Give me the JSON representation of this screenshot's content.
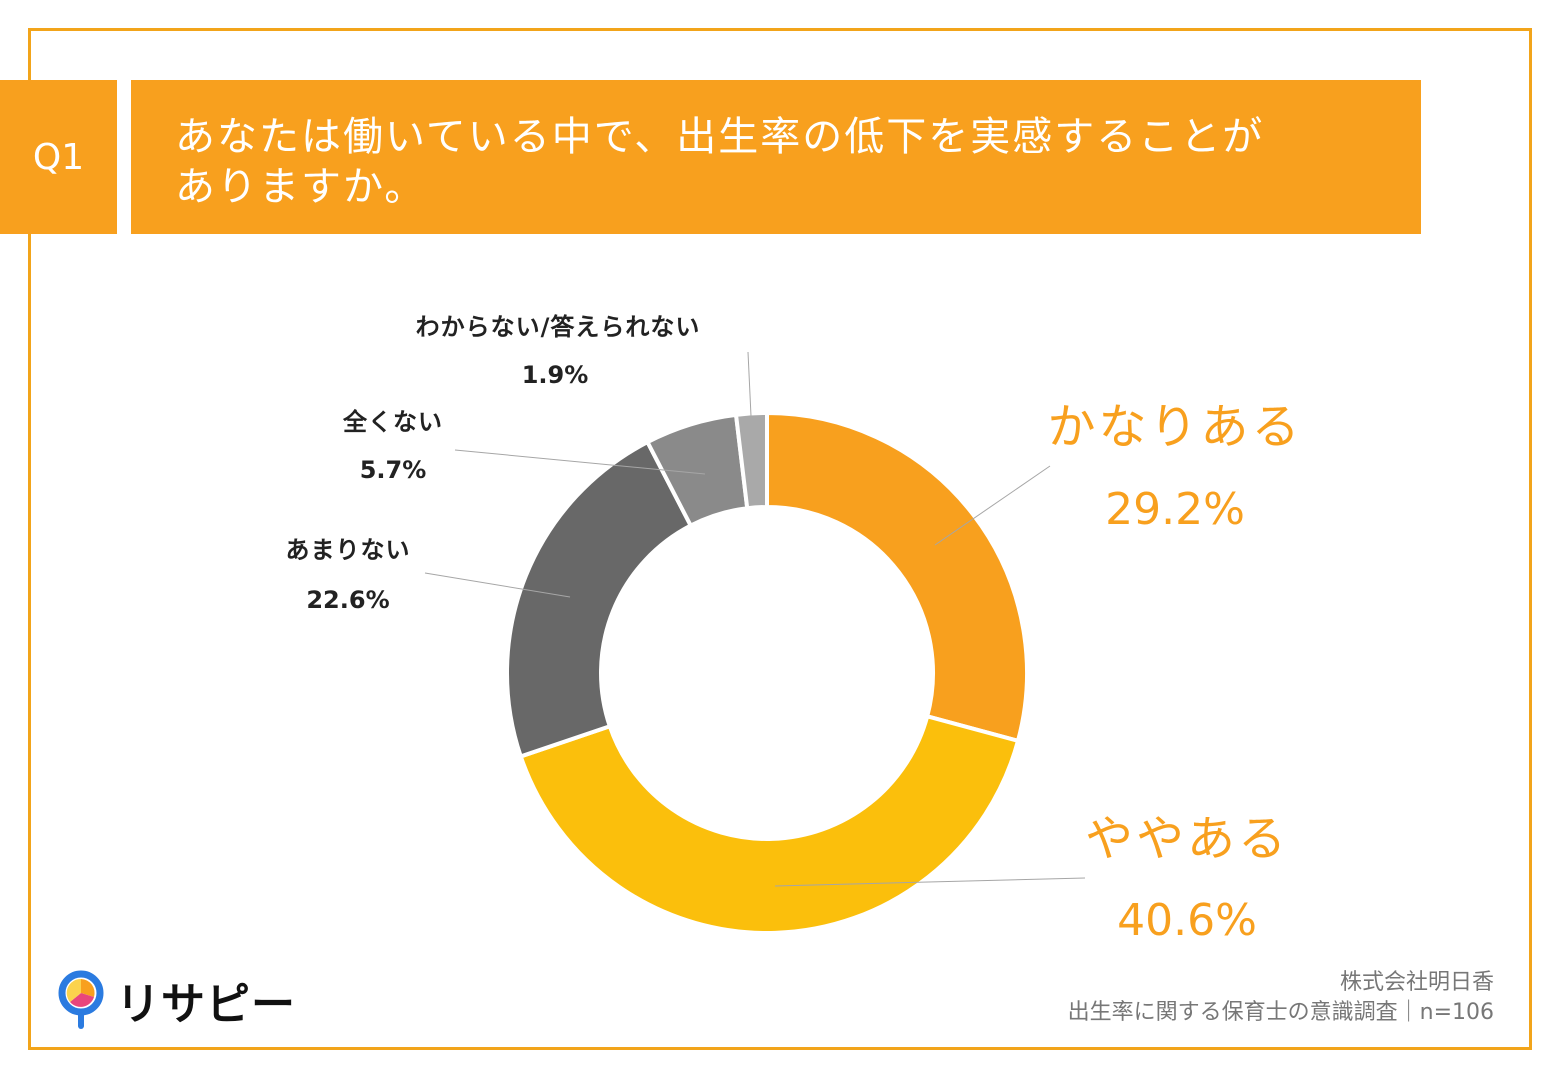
{
  "question": {
    "badge": "Q1",
    "line1": "あなたは働いている中で、出生率の低下を実感することが",
    "line2": "ありますか。"
  },
  "chart_data": {
    "type": "pie",
    "donut": true,
    "start_angle_deg": 0,
    "direction": "clockwise",
    "categories": [
      "かなりある",
      "ややある",
      "あまりない",
      "全くない",
      "わからない/答えられない"
    ],
    "values": [
      29.2,
      40.6,
      22.6,
      5.7,
      1.9
    ],
    "value_labels": [
      "29.2%",
      "40.6%",
      "22.6%",
      "5.7%",
      "1.9%"
    ],
    "colors": [
      "#f8a01e",
      "#fbbf0c",
      "#686868",
      "#8a8a8a",
      "#a9a9a9"
    ],
    "label_colors": [
      "#f8a01e",
      "#f8a01e",
      "#222222",
      "#222222",
      "#222222"
    ],
    "unit": "%"
  },
  "logo": {
    "text": "リサピー",
    "icon": "magnifier-pie-icon"
  },
  "source": {
    "company": "株式会社明日香",
    "survey": "出生率に関する保育士の意識調査｜n=106"
  }
}
